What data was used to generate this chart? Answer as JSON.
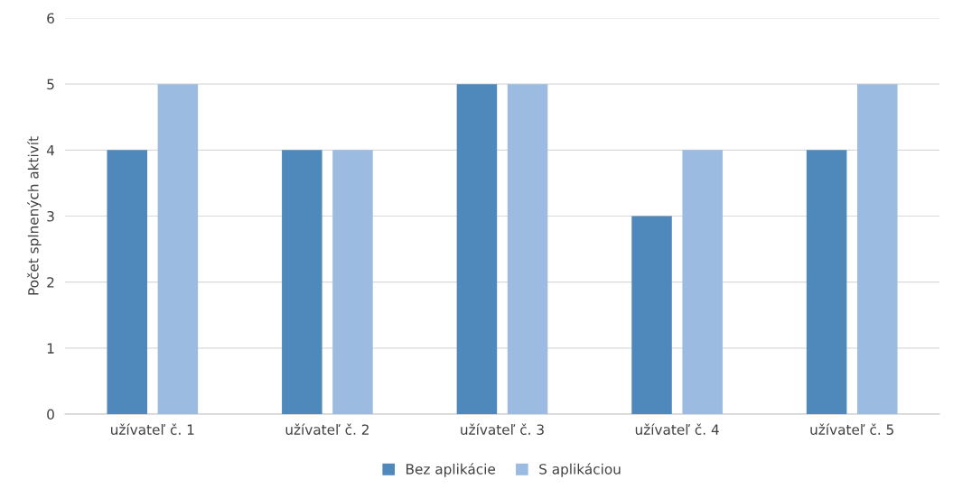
{
  "chart_data": {
    "type": "bar",
    "ylabel": "Počet splnených aktivít",
    "categories": [
      "užívateľ č. 1",
      "užívateľ č. 2",
      "užívateľ č. 3",
      "užívateľ č. 4",
      "užívateľ č. 5"
    ],
    "series": [
      {
        "name": "Bez aplikácie",
        "color": "#4f88bb",
        "values": [
          4,
          4,
          5,
          3,
          4
        ]
      },
      {
        "name": "S aplikáciou",
        "color": "#9bbbe0",
        "values": [
          5,
          4,
          5,
          4,
          5
        ]
      }
    ],
    "ylim": [
      0,
      6
    ],
    "yticks": [
      0,
      1,
      2,
      3,
      4,
      5,
      6
    ],
    "grid": "y",
    "legend": "bottom"
  }
}
